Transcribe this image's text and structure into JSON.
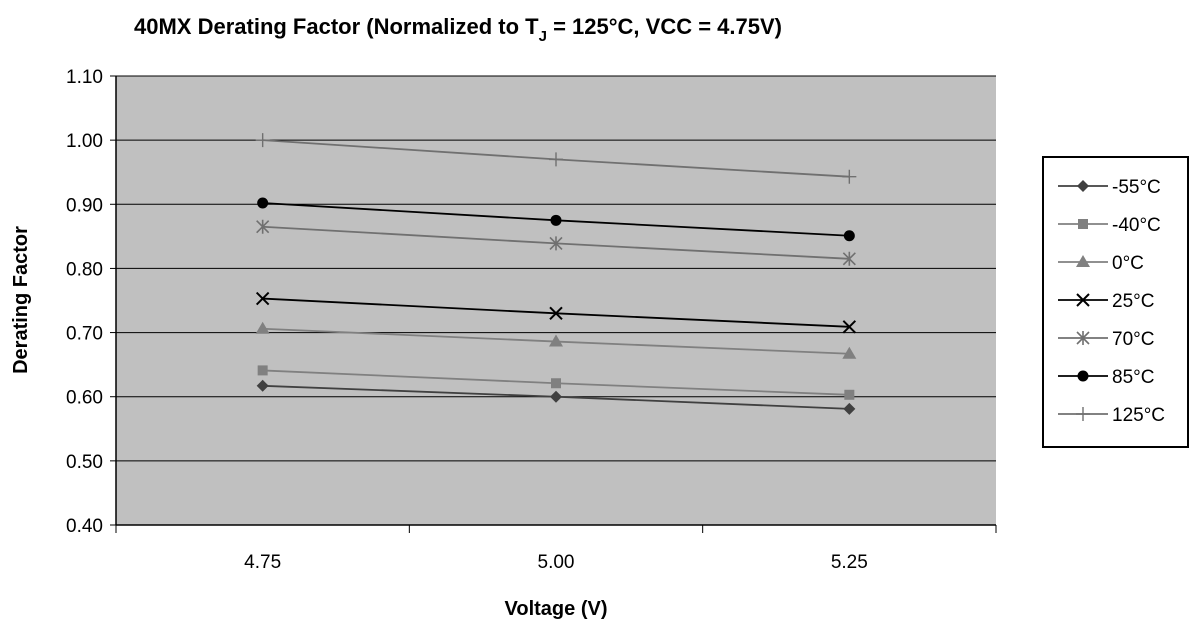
{
  "chart_data": {
    "type": "line",
    "title": "40MX Derating Factor (Normalized to T",
    "title_subscript": "J",
    "title_suffix": " = 125°C, VCC  = 4.75V)",
    "xlabel": "Voltage (V)",
    "ylabel": "Derating Factor",
    "x": [
      4.75,
      5.0,
      5.25
    ],
    "x_tick_labels": [
      "4.75",
      "5.00",
      "5.25"
    ],
    "ylim": [
      0.4,
      1.1
    ],
    "y_ticks": [
      0.4,
      0.5,
      0.6,
      0.7,
      0.8,
      0.9,
      1.0,
      1.1
    ],
    "y_tick_labels": [
      "0.40",
      "0.50",
      "0.60",
      "0.70",
      "0.80",
      "0.90",
      "1.00",
      "1.10"
    ],
    "grid": "horizontal",
    "plot_background": "#c0c0c0",
    "legend_position": "right",
    "series": [
      {
        "name": "-55°C",
        "values": [
          0.617,
          0.6,
          0.581
        ],
        "color": "#404040",
        "marker": "diamond"
      },
      {
        "name": "-40°C",
        "values": [
          0.641,
          0.621,
          0.603
        ],
        "color": "#808080",
        "marker": "square"
      },
      {
        "name": "0°C",
        "values": [
          0.706,
          0.686,
          0.667
        ],
        "color": "#808080",
        "marker": "triangle"
      },
      {
        "name": "25°C",
        "values": [
          0.753,
          0.73,
          0.709
        ],
        "color": "#000000",
        "marker": "x"
      },
      {
        "name": "70°C",
        "values": [
          0.865,
          0.839,
          0.815
        ],
        "color": "#707070",
        "marker": "asterisk"
      },
      {
        "name": "85°C",
        "values": [
          0.902,
          0.875,
          0.851
        ],
        "color": "#000000",
        "marker": "circle"
      },
      {
        "name": "125°C",
        "values": [
          1.0,
          0.97,
          0.943
        ],
        "color": "#707070",
        "marker": "plus"
      }
    ]
  }
}
